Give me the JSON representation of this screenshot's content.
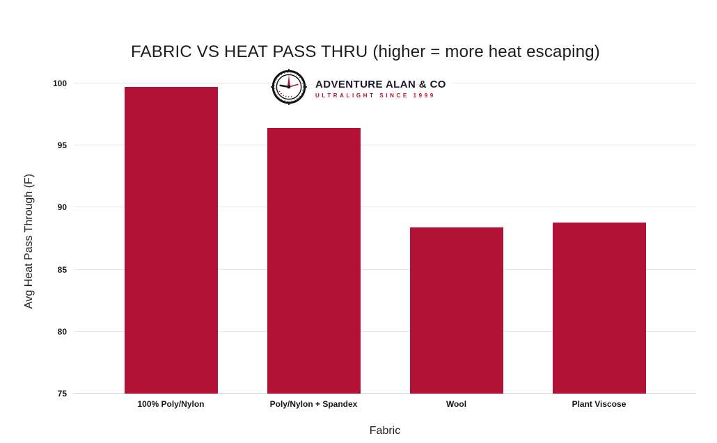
{
  "chart_data": {
    "type": "bar",
    "title": "FABRIC VS HEAT PASS THRU (higher = more heat escaping)",
    "xlabel": "Fabric",
    "ylabel": "Avg Heat Pass Through (F)",
    "categories": [
      "100% Poly/Nylon",
      "Poly/Nylon + Spandex",
      "Wool",
      "Plant Viscose"
    ],
    "values": [
      99.7,
      96.4,
      88.4,
      88.8
    ],
    "ylim": [
      75,
      100
    ],
    "yticks": [
      75,
      80,
      85,
      90,
      95,
      100
    ],
    "grid": true,
    "legend_position": "none",
    "bar_color": "#B31237"
  },
  "branding": {
    "logo_icon": "clock-compass-icon",
    "name": "ADVENTURE ALAN & CO",
    "tagline": "ULTRALIGHT SINCE 1999",
    "accent_color": "#B01233",
    "text_color": "#171A2E"
  }
}
